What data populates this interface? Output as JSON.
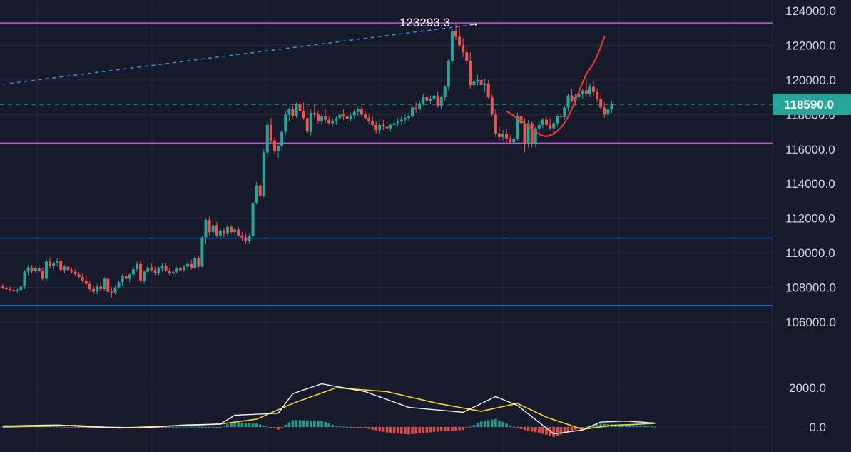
{
  "colors": {
    "background": "#161a2b",
    "grid": "#262b3e",
    "bull": "#26a69a",
    "bear": "#ef5350",
    "magenta_level": "#e040fb",
    "blue_level": "#2f7ff5",
    "trend_dashed": "#3d8fe0",
    "current_price": "#26a69a",
    "macd_line": "#f0f0f0",
    "signal_line": "#f5d033",
    "projection": "#e53935",
    "axis_text": "#d1d4dc"
  },
  "chart_data": [
    {
      "type": "candlestick",
      "title": "",
      "ylim": [
        104500,
        124600
      ],
      "yticks": [
        106000,
        108000,
        110000,
        112000,
        114000,
        116000,
        118000,
        120000,
        122000,
        124000
      ],
      "ytick_labels": [
        "106000.0",
        "108000.0",
        "110000.0",
        "112000.0",
        "114000.0",
        "116000.0",
        "118000.0",
        "120000.0",
        "122000.0",
        "124000.0"
      ],
      "grid": true,
      "current_price": 118590,
      "current_price_label": "118590.0",
      "peak_label": "123293.3",
      "peak_arrow": "→",
      "horizontal_levels": [
        {
          "value": 123293.3,
          "color": "magenta"
        },
        {
          "value": 116350,
          "color": "magenta"
        },
        {
          "value": 110850,
          "color": "blue"
        },
        {
          "value": 106950,
          "color": "blue"
        }
      ],
      "trend_line": {
        "from": [
          0,
          119750
        ],
        "to": [
          130,
          123200
        ],
        "style": "dashed"
      },
      "projection_path": [
        [
          139,
          118200
        ],
        [
          144,
          117500
        ],
        [
          148,
          116800
        ],
        [
          151,
          116700
        ],
        [
          155,
          117400
        ],
        [
          158,
          118800
        ],
        [
          161,
          120400
        ],
        [
          163,
          120900
        ],
        [
          165,
          121900
        ],
        [
          166,
          122500
        ]
      ],
      "ohlc": [
        [
          108050,
          108200,
          107900,
          107980
        ],
        [
          107980,
          108100,
          107850,
          107900
        ],
        [
          107900,
          108050,
          107750,
          107850
        ],
        [
          107850,
          108000,
          107700,
          107780
        ],
        [
          107780,
          107950,
          107650,
          107850
        ],
        [
          107850,
          108100,
          107750,
          108050
        ],
        [
          108050,
          109000,
          107900,
          108900
        ],
        [
          108900,
          109300,
          108700,
          109150
        ],
        [
          109150,
          109300,
          108800,
          108950
        ],
        [
          108950,
          109200,
          108850,
          109100
        ],
        [
          109100,
          109300,
          108900,
          108950
        ],
        [
          108950,
          109100,
          108400,
          108500
        ],
        [
          108500,
          109700,
          108300,
          109500
        ],
        [
          109500,
          109750,
          109100,
          109250
        ],
        [
          109250,
          109500,
          109000,
          109400
        ],
        [
          109400,
          109700,
          109200,
          109550
        ],
        [
          109550,
          109700,
          108900,
          109000
        ],
        [
          109000,
          109300,
          108800,
          109200
        ],
        [
          109200,
          109400,
          108900,
          109000
        ],
        [
          109000,
          109150,
          108800,
          108900
        ],
        [
          108900,
          109050,
          108700,
          108750
        ],
        [
          108750,
          108900,
          108500,
          108600
        ],
        [
          108600,
          108800,
          108300,
          108400
        ],
        [
          108400,
          108700,
          108100,
          108200
        ],
        [
          108200,
          108400,
          107800,
          107900
        ],
        [
          107900,
          108100,
          107600,
          107750
        ],
        [
          107750,
          108200,
          107600,
          108050
        ],
        [
          108050,
          108300,
          107800,
          107900
        ],
        [
          107900,
          108600,
          107800,
          108500
        ],
        [
          108500,
          108700,
          107700,
          107750
        ],
        [
          107750,
          108000,
          107400,
          107700
        ],
        [
          107700,
          108100,
          107600,
          108000
        ],
        [
          108000,
          108400,
          107900,
          108300
        ],
        [
          108300,
          108800,
          108100,
          108650
        ],
        [
          108650,
          108900,
          108400,
          108500
        ],
        [
          108500,
          108800,
          108300,
          108750
        ],
        [
          108750,
          109200,
          108600,
          109050
        ],
        [
          109050,
          109500,
          108900,
          109350
        ],
        [
          109350,
          109600,
          108300,
          108400
        ],
        [
          108400,
          109000,
          108200,
          108900
        ],
        [
          108900,
          109300,
          108700,
          109150
        ],
        [
          109150,
          109400,
          108900,
          109000
        ],
        [
          109000,
          109200,
          108700,
          108850
        ],
        [
          108850,
          109200,
          108700,
          109100
        ],
        [
          109100,
          109400,
          108900,
          109250
        ],
        [
          109250,
          109400,
          108900,
          108950
        ],
        [
          108950,
          109100,
          108700,
          108800
        ],
        [
          108800,
          109000,
          108600,
          108900
        ],
        [
          108900,
          109200,
          108800,
          109100
        ],
        [
          109100,
          109250,
          108900,
          109000
        ],
        [
          109000,
          109300,
          108900,
          109200
        ],
        [
          109200,
          109500,
          109000,
          109350
        ],
        [
          109350,
          109600,
          109000,
          109100
        ],
        [
          109100,
          109800,
          109000,
          109700
        ],
        [
          109700,
          109850,
          109100,
          109200
        ],
        [
          109200,
          111000,
          109150,
          110900
        ],
        [
          110900,
          112000,
          110500,
          111900
        ],
        [
          111900,
          112100,
          111000,
          111200
        ],
        [
          111200,
          111700,
          111000,
          111600
        ],
        [
          111600,
          111800,
          110900,
          111000
        ],
        [
          111000,
          111500,
          110800,
          111300
        ],
        [
          111300,
          111400,
          110900,
          111100
        ],
        [
          111100,
          111600,
          111000,
          111500
        ],
        [
          111500,
          111600,
          111100,
          111200
        ],
        [
          111200,
          111450,
          111000,
          111350
        ],
        [
          111350,
          111500,
          110900,
          111000
        ],
        [
          111000,
          111200,
          110700,
          110900
        ],
        [
          110900,
          111100,
          110500,
          110700
        ],
        [
          110700,
          111100,
          110500,
          110950
        ],
        [
          110950,
          113000,
          110800,
          112900
        ],
        [
          112900,
          114100,
          112800,
          113900
        ],
        [
          113900,
          114000,
          113100,
          113300
        ],
        [
          113300,
          116000,
          113200,
          115800
        ],
        [
          115800,
          117600,
          115500,
          117400
        ],
        [
          117400,
          117800,
          116300,
          116500
        ],
        [
          116500,
          116700,
          115700,
          115900
        ],
        [
          115900,
          116300,
          115500,
          116200
        ],
        [
          116200,
          117200,
          115900,
          117000
        ],
        [
          117000,
          118200,
          116800,
          118000
        ],
        [
          118000,
          118400,
          117600,
          118300
        ],
        [
          118300,
          118500,
          117800,
          117900
        ],
        [
          117900,
          118700,
          117800,
          118600
        ],
        [
          118600,
          118900,
          118100,
          118200
        ],
        [
          118200,
          118700,
          117700,
          117800
        ],
        [
          117800,
          118500,
          116900,
          117000
        ],
        [
          117000,
          118300,
          116800,
          118100
        ],
        [
          118100,
          118600,
          117800,
          118000
        ],
        [
          118000,
          118200,
          117500,
          117600
        ],
        [
          117600,
          118000,
          117400,
          117900
        ],
        [
          117900,
          118300,
          117500,
          117700
        ],
        [
          117700,
          117900,
          117400,
          117500
        ],
        [
          117500,
          117800,
          117300,
          117600
        ],
        [
          117600,
          117900,
          117400,
          117800
        ],
        [
          117800,
          118200,
          117600,
          118000
        ],
        [
          118000,
          118300,
          117700,
          117900
        ],
        [
          117900,
          118100,
          117600,
          117750
        ],
        [
          117750,
          118100,
          117600,
          117950
        ],
        [
          117950,
          118300,
          117800,
          118150
        ],
        [
          118150,
          118450,
          117900,
          118300
        ],
        [
          118300,
          118500,
          117900,
          118000
        ],
        [
          118000,
          118200,
          117700,
          117800
        ],
        [
          117800,
          118000,
          117500,
          117600
        ],
        [
          117600,
          117900,
          117300,
          117400
        ],
        [
          117400,
          117600,
          116900,
          117100
        ],
        [
          117100,
          117500,
          116900,
          117400
        ],
        [
          117400,
          117700,
          117100,
          117300
        ],
        [
          117300,
          117500,
          117000,
          117200
        ],
        [
          117200,
          117500,
          117000,
          117400
        ],
        [
          117400,
          117700,
          117200,
          117500
        ],
        [
          117500,
          117800,
          117300,
          117600
        ],
        [
          117600,
          117900,
          117400,
          117700
        ],
        [
          117700,
          118000,
          117500,
          117800
        ],
        [
          117800,
          118100,
          117600,
          117900
        ],
        [
          117900,
          118500,
          117800,
          118400
        ],
        [
          118400,
          118700,
          118100,
          118300
        ],
        [
          118300,
          118800,
          118200,
          118650
        ],
        [
          118650,
          119200,
          118500,
          119000
        ],
        [
          119000,
          119300,
          118700,
          118800
        ],
        [
          118800,
          119100,
          118600,
          118900
        ],
        [
          118900,
          119300,
          118700,
          119100
        ],
        [
          119100,
          119300,
          118400,
          118500
        ],
        [
          118500,
          119100,
          118300,
          119000
        ],
        [
          119000,
          119700,
          118800,
          119600
        ],
        [
          119600,
          121200,
          119400,
          121100
        ],
        [
          121100,
          123000,
          121000,
          122800
        ],
        [
          122800,
          123293,
          122300,
          122500
        ],
        [
          122500,
          123100,
          121900,
          122000
        ],
        [
          122000,
          122400,
          121300,
          121600
        ],
        [
          121600,
          122000,
          120900,
          121100
        ],
        [
          121100,
          121600,
          119500,
          119700
        ],
        [
          119700,
          120200,
          119400,
          119900
        ],
        [
          119900,
          120300,
          119700,
          120000
        ],
        [
          120000,
          120200,
          119600,
          119700
        ],
        [
          119700,
          120100,
          119300,
          119800
        ],
        [
          119800,
          120000,
          118900,
          119000
        ],
        [
          119000,
          119200,
          117900,
          118000
        ],
        [
          118000,
          118300,
          116700,
          116900
        ],
        [
          116900,
          117300,
          116500,
          116700
        ],
        [
          116700,
          117100,
          116500,
          116900
        ],
        [
          116900,
          117200,
          116400,
          116600
        ],
        [
          116600,
          116800,
          116300,
          116400
        ],
        [
          116400,
          116700,
          116300,
          116600
        ],
        [
          116600,
          118100,
          116500,
          117900
        ],
        [
          117900,
          118200,
          117400,
          117500
        ],
        [
          117500,
          117800,
          115800,
          116300
        ],
        [
          116300,
          117700,
          116100,
          117500
        ],
        [
          117500,
          117600,
          116100,
          116300
        ],
        [
          116300,
          117300,
          116100,
          117200
        ],
        [
          117200,
          117600,
          116900,
          117400
        ],
        [
          117400,
          117800,
          117200,
          117700
        ],
        [
          117700,
          117900,
          117300,
          117400
        ],
        [
          117400,
          117800,
          117100,
          117200
        ],
        [
          117200,
          117600,
          116900,
          117500
        ],
        [
          117500,
          118000,
          117300,
          117900
        ],
        [
          117900,
          118100,
          117600,
          117850
        ],
        [
          117850,
          118500,
          117700,
          118400
        ],
        [
          118400,
          119200,
          118200,
          119100
        ],
        [
          119100,
          119500,
          118700,
          118800
        ],
        [
          118800,
          119200,
          118500,
          119000
        ],
        [
          119000,
          119400,
          118800,
          119200
        ],
        [
          119200,
          119500,
          118900,
          119400
        ],
        [
          119400,
          120000,
          119000,
          119200
        ],
        [
          119200,
          119800,
          119000,
          119600
        ],
        [
          119600,
          119900,
          119100,
          119300
        ],
        [
          119300,
          119500,
          118700,
          118900
        ],
        [
          118900,
          119200,
          118300,
          118400
        ],
        [
          118400,
          118700,
          117800,
          118000
        ],
        [
          118000,
          118500,
          117800,
          118300
        ],
        [
          118300,
          118800,
          118100,
          118590
        ]
      ]
    },
    {
      "type": "macd",
      "ylim": [
        -800,
        2600
      ],
      "yticks": [
        0,
        2000
      ],
      "ytick_labels": [
        "0.0",
        "2000.0"
      ],
      "grid": true,
      "macd_keypoints": [
        [
          0,
          50
        ],
        [
          15,
          100
        ],
        [
          25,
          0
        ],
        [
          38,
          -50
        ],
        [
          50,
          100
        ],
        [
          60,
          150
        ],
        [
          64,
          600
        ],
        [
          76,
          700
        ],
        [
          80,
          1700
        ],
        [
          88,
          2200
        ],
        [
          100,
          1800
        ],
        [
          112,
          1000
        ],
        [
          127,
          750
        ],
        [
          136,
          1550
        ],
        [
          142,
          1100
        ],
        [
          152,
          -350
        ],
        [
          160,
          -150
        ],
        [
          165,
          250
        ],
        [
          172,
          300
        ],
        [
          180,
          200
        ]
      ],
      "signal_keypoints": [
        [
          0,
          0
        ],
        [
          20,
          80
        ],
        [
          32,
          -50
        ],
        [
          46,
          50
        ],
        [
          60,
          150
        ],
        [
          70,
          400
        ],
        [
          80,
          1200
        ],
        [
          92,
          2000
        ],
        [
          106,
          1800
        ],
        [
          120,
          1200
        ],
        [
          132,
          800
        ],
        [
          142,
          1200
        ],
        [
          150,
          500
        ],
        [
          160,
          -120
        ],
        [
          168,
          80
        ],
        [
          180,
          180
        ]
      ]
    }
  ]
}
